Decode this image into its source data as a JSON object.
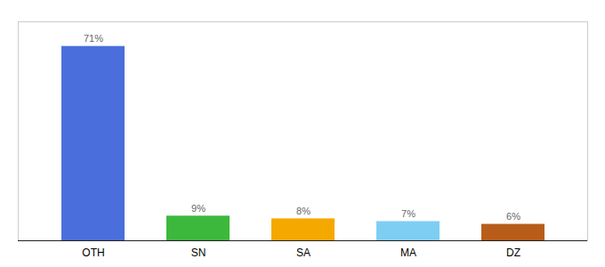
{
  "chart_data": {
    "type": "bar",
    "categories": [
      "OTH",
      "SN",
      "SA",
      "MA",
      "DZ"
    ],
    "values": [
      71,
      9,
      8,
      7,
      6
    ],
    "value_labels": [
      "71%",
      "9%",
      "8%",
      "7%",
      "6%"
    ],
    "colors": [
      "#4a6fdc",
      "#3cb93c",
      "#f5a800",
      "#7ecef4",
      "#b85c1a"
    ],
    "ylim": [
      0,
      80
    ],
    "data_labels": true,
    "tick_labels": "x"
  }
}
